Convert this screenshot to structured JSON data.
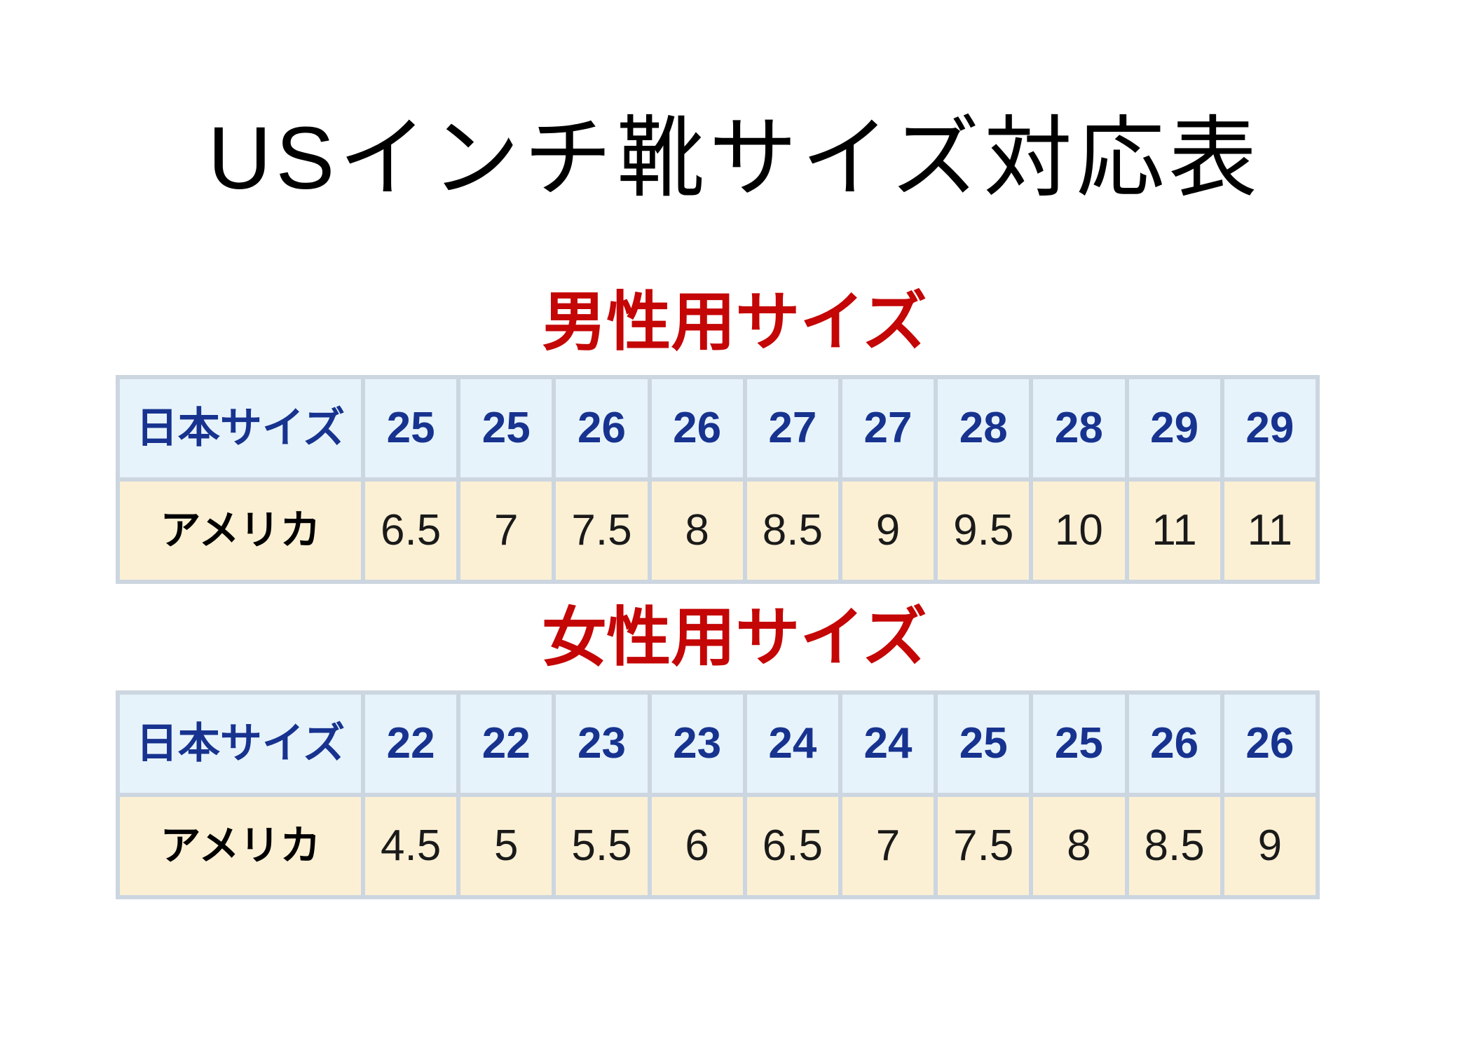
{
  "page_title": "USインチ靴サイズ対応表",
  "tables": {
    "men": {
      "heading": "男性用サイズ",
      "rows": {
        "japan": {
          "label": "日本サイズ",
          "values": [
            "25",
            "25",
            "26",
            "26",
            "27",
            "27",
            "28",
            "28",
            "29",
            "29"
          ]
        },
        "us": {
          "label": "アメリカ",
          "values": [
            "6.5",
            "7",
            "7.5",
            "8",
            "8.5",
            "9",
            "9.5",
            "10",
            "11",
            "11"
          ]
        }
      }
    },
    "women": {
      "heading": "女性用サイズ",
      "rows": {
        "japan": {
          "label": "日本サイズ",
          "values": [
            "22",
            "22",
            "23",
            "23",
            "24",
            "24",
            "25",
            "25",
            "26",
            "26"
          ]
        },
        "us": {
          "label": "アメリカ",
          "values": [
            "4.5",
            "5",
            "5.5",
            "6",
            "6.5",
            "7",
            "7.5",
            "8",
            "8.5",
            "9"
          ]
        }
      }
    }
  },
  "colors": {
    "title_text": "#000000",
    "heading_red": "#c40606",
    "japan_row_bg": "#e7f3fb",
    "us_row_bg": "#fcf0d4",
    "border": "#ccd6e0",
    "japan_text": "#17338f"
  }
}
